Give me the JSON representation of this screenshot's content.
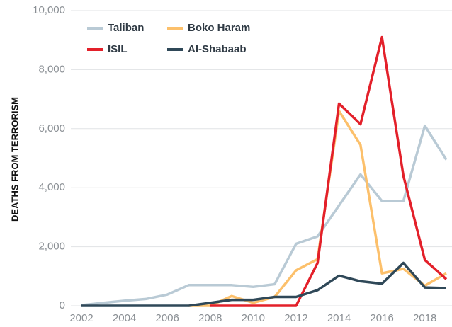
{
  "chart_data": {
    "type": "line",
    "y_label": "DEATHS FROM TERRORISM",
    "x": [
      2002,
      2003,
      2004,
      2005,
      2006,
      2007,
      2008,
      2009,
      2010,
      2011,
      2012,
      2013,
      2014,
      2015,
      2016,
      2017,
      2018,
      2019
    ],
    "series": [
      {
        "name": "Taliban",
        "color": "#b9cad5",
        "values": [
          20,
          100,
          170,
          230,
          380,
          700,
          700,
          700,
          640,
          730,
          2100,
          2350,
          3400,
          4450,
          3550,
          3550,
          6100,
          4950
        ]
      },
      {
        "name": "Boko Haram",
        "color": "#fcc06b",
        "values": [
          null,
          null,
          null,
          null,
          null,
          0,
          0,
          330,
          100,
          300,
          1200,
          1580,
          6600,
          5450,
          1100,
          1250,
          680,
          1100
        ]
      },
      {
        "name": "ISIL",
        "color": "#e3202a",
        "values": [
          null,
          null,
          null,
          null,
          null,
          null,
          0,
          0,
          0,
          0,
          0,
          1450,
          6850,
          6150,
          9100,
          4400,
          1550,
          900
        ]
      },
      {
        "name": "Al-Shabaab",
        "color": "#2f4858",
        "values": [
          0,
          0,
          0,
          0,
          0,
          0,
          100,
          200,
          200,
          300,
          300,
          530,
          1020,
          830,
          750,
          1450,
          620,
          600
        ]
      }
    ],
    "xlim": [
      2002,
      2019
    ],
    "xticks": [
      2002,
      2004,
      2006,
      2008,
      2010,
      2012,
      2014,
      2016,
      2018
    ],
    "ylim": [
      0,
      10000
    ],
    "yticks": [
      0,
      {
        "value": 2000,
        "label": "2,000"
      },
      {
        "value": 4000,
        "label": "4,000"
      },
      {
        "value": 6000,
        "label": "6,000"
      },
      {
        "value": 8000,
        "label": "8,000"
      },
      {
        "value": 10000,
        "label": "10,000"
      }
    ],
    "grid": true,
    "legend": "top-left"
  }
}
